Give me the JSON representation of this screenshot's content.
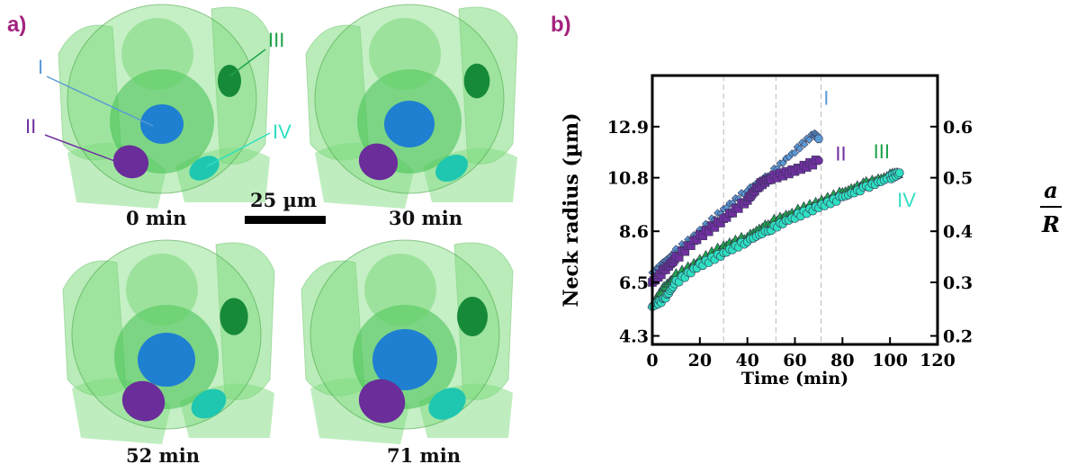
{
  "panels": {
    "a": "a)",
    "b": "b)"
  },
  "renders": [
    {
      "time": "0 min"
    },
    {
      "time": "30 min"
    },
    {
      "time": "52 min"
    },
    {
      "time": "71 min"
    }
  ],
  "scale_bar": "25 µm",
  "neck_labels": [
    "I",
    "II",
    "III",
    "IV"
  ],
  "colors": {
    "I": "#5b9bd5",
    "II": "#7030a0",
    "III": "#1fa34a",
    "IV": "#2ee0c0",
    "panel_label": "#a3237e",
    "particle": "#7fdc7f"
  },
  "chart_data": {
    "type": "scatter",
    "xlabel": "Time (min)",
    "ylabel": "Neck radius (µm)",
    "y2label_num": "a",
    "y2label_den": "R",
    "xlim": [
      0,
      120
    ],
    "ylim": [
      3.95,
      15.0
    ],
    "xticks": [
      0,
      20,
      40,
      60,
      80,
      100,
      120
    ],
    "yticks": [
      4.3,
      6.5,
      8.6,
      10.8,
      12.9
    ],
    "yticks_labels": [
      "4.3",
      "6.5",
      "8.6",
      "10.8",
      "12.9"
    ],
    "y2ticks_labels": [
      "0.2",
      "0.3",
      "0.4",
      "0.5",
      "0.6"
    ],
    "vlines": [
      30,
      52,
      71
    ],
    "series": [
      {
        "name": "I",
        "marker": "diamond",
        "color": "#5b9bd5",
        "x": [
          0,
          5,
          10,
          20,
          30,
          40,
          50,
          60,
          68,
          70
        ],
        "y": [
          6.9,
          7.3,
          7.8,
          8.6,
          9.5,
          10.3,
          11.0,
          11.9,
          12.6,
          12.4
        ]
      },
      {
        "name": "II",
        "marker": "square",
        "color": "#7030a0",
        "x": [
          0,
          5,
          10,
          20,
          30,
          40,
          45,
          50,
          60,
          70
        ],
        "y": [
          6.5,
          7.0,
          7.5,
          8.4,
          9.1,
          9.9,
          10.5,
          10.8,
          11.1,
          11.5
        ]
      },
      {
        "name": "III",
        "marker": "triangle",
        "color": "#1fa34a",
        "x": [
          0,
          5,
          10,
          20,
          30,
          40,
          50,
          60,
          70,
          80,
          90,
          100,
          104
        ],
        "y": [
          5.6,
          6.3,
          6.8,
          7.4,
          8.0,
          8.4,
          9.0,
          9.4,
          9.8,
          10.2,
          10.6,
          10.9,
          11.0
        ]
      },
      {
        "name": "IV",
        "marker": "circle",
        "color": "#2ee0c0",
        "x": [
          0,
          5,
          10,
          20,
          30,
          40,
          50,
          60,
          70,
          80,
          90,
          100,
          104
        ],
        "y": [
          5.5,
          5.8,
          6.5,
          7.2,
          7.7,
          8.2,
          8.7,
          9.2,
          9.6,
          10.0,
          10.4,
          10.8,
          11.0
        ]
      }
    ]
  }
}
